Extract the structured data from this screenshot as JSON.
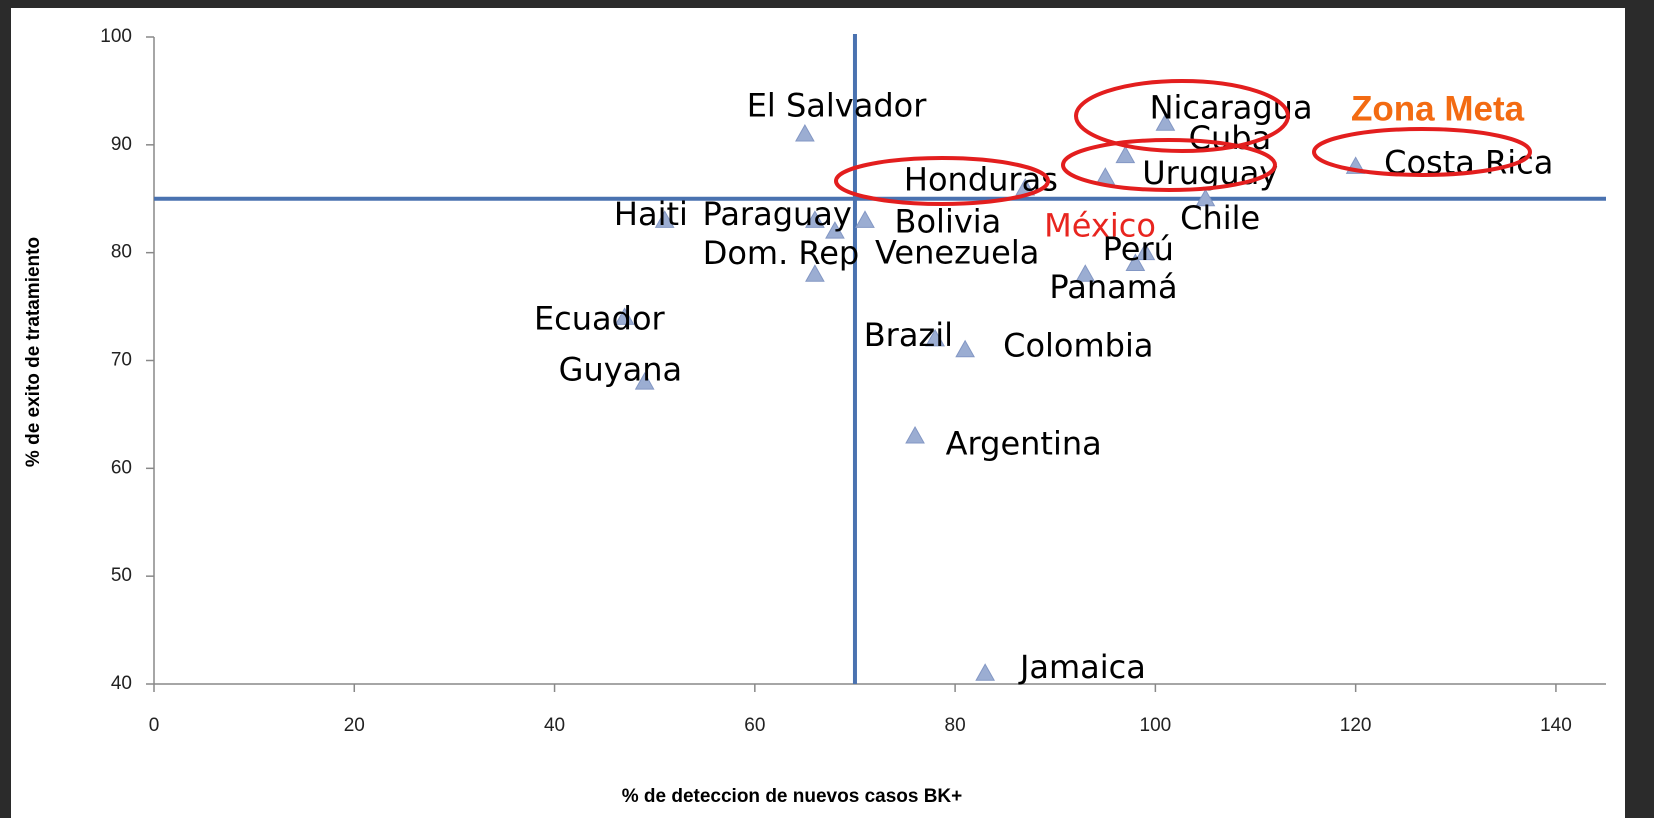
{
  "chart_data": {
    "type": "scatter",
    "x_label": "% de deteccion de nuevos casos BK+",
    "y_label": "% de exito de tratamiento",
    "annotation": "Zona Meta",
    "point_labels": [
      "El Salvador",
      "Nicaragua",
      "Cuba",
      "Uruguay",
      "Honduras",
      "Costa Rica",
      "Chile",
      "Haiti",
      "Paraguay",
      "Bolivia",
      "Dom. Rep",
      "Venezuela",
      "México",
      "Perú",
      "Panamá",
      "Ecuador",
      "Guyana",
      "Brazil",
      "Colombia",
      "Argentina",
      "Jamaica"
    ],
    "x": [
      65,
      101,
      97,
      95,
      87,
      120,
      105,
      51,
      66,
      71,
      66,
      68,
      99,
      98,
      93,
      47,
      49,
      78,
      81,
      76,
      83
    ],
    "values": [
      91,
      92,
      89,
      87,
      86,
      88,
      85,
      83,
      83,
      83,
      78,
      82,
      80,
      79,
      78,
      74,
      68,
      72,
      71,
      63,
      41
    ],
    "label_colors": [
      "#000000",
      "#000000",
      "#000000",
      "#000000",
      "#000000",
      "#000000",
      "#000000",
      "#000000",
      "#000000",
      "#000000",
      "#000000",
      "#000000",
      "#e8251f",
      "#000000",
      "#000000",
      "#000000",
      "#000000",
      "#000000",
      "#000000",
      "#000000",
      "#000000"
    ],
    "color": "#9badd2",
    "reference_lines": {
      "x": 70,
      "y": 85
    },
    "xlim": [
      0,
      145
    ],
    "ylim": [
      40,
      100
    ],
    "xticks": [
      0,
      20,
      40,
      60,
      80,
      100,
      120,
      140
    ],
    "yticks": [
      40,
      50,
      60,
      70,
      80,
      90,
      100
    ]
  }
}
